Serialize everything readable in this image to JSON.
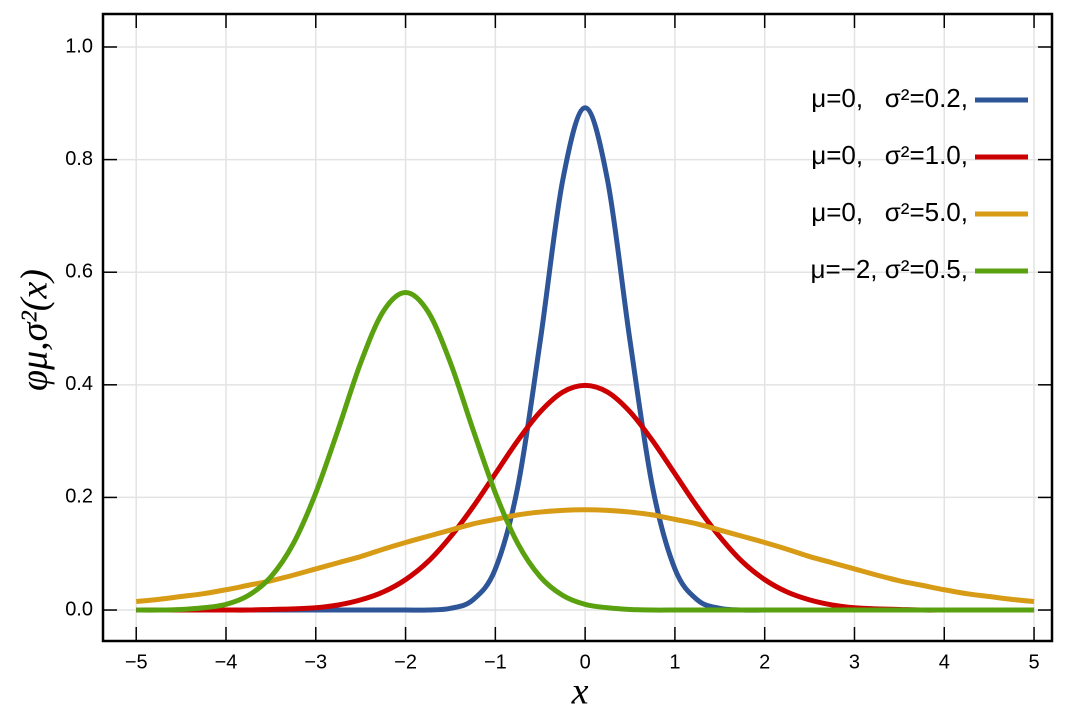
{
  "chart_data": {
    "type": "line",
    "xlabel": "x",
    "ylabel": "φμ,σ²(x)",
    "x": [
      -5,
      -4.75,
      -4.5,
      -4.25,
      -4,
      -3.75,
      -3.5,
      -3.25,
      -3,
      -2.75,
      -2.5,
      -2.25,
      -2,
      -1.75,
      -1.5,
      -1.25,
      -1,
      -0.75,
      -0.5,
      -0.25,
      0,
      0.25,
      0.5,
      0.75,
      1,
      1.25,
      1.5,
      1.75,
      2,
      2.25,
      2.5,
      2.75,
      3,
      3.25,
      3.5,
      3.75,
      4,
      4.25,
      4.5,
      4.75,
      5
    ],
    "series": [
      {
        "name": "μ=0,   σ²=0.2,",
        "color": "#2d5597",
        "values": [
          0,
          0,
          0,
          0,
          0,
          0,
          0,
          0,
          0,
          0,
          0,
          0,
          0,
          0,
          0.003,
          0.018,
          0.073,
          0.219,
          0.478,
          0.763,
          0.892,
          0.763,
          0.478,
          0.219,
          0.073,
          0.018,
          0.003,
          0,
          0,
          0,
          0,
          0,
          0,
          0,
          0,
          0,
          0,
          0,
          0,
          0,
          0
        ]
      },
      {
        "name": "μ=0,   σ²=1.0,",
        "color": "#cc0000",
        "values": [
          0,
          0,
          0,
          0,
          0,
          0,
          0.001,
          0.002,
          0.004,
          0.009,
          0.018,
          0.032,
          0.054,
          0.086,
          0.13,
          0.183,
          0.242,
          0.301,
          0.352,
          0.387,
          0.399,
          0.387,
          0.352,
          0.301,
          0.242,
          0.183,
          0.13,
          0.086,
          0.054,
          0.032,
          0.018,
          0.009,
          0.004,
          0.002,
          0.001,
          0,
          0,
          0,
          0,
          0,
          0
        ]
      },
      {
        "name": "μ=0,   σ²=5.0,",
        "color": "#d79b16",
        "values": [
          0.015,
          0.019,
          0.024,
          0.029,
          0.036,
          0.044,
          0.052,
          0.062,
          0.073,
          0.084,
          0.095,
          0.108,
          0.12,
          0.131,
          0.142,
          0.153,
          0.161,
          0.169,
          0.174,
          0.177,
          0.178,
          0.177,
          0.174,
          0.169,
          0.161,
          0.153,
          0.142,
          0.131,
          0.12,
          0.108,
          0.095,
          0.084,
          0.073,
          0.062,
          0.052,
          0.044,
          0.036,
          0.029,
          0.024,
          0.019,
          0.015
        ]
      },
      {
        "name": "μ=−2, σ²=0.5,",
        "color": "#5aa10f",
        "values": [
          0,
          0,
          0.001,
          0.004,
          0.01,
          0.026,
          0.059,
          0.118,
          0.208,
          0.321,
          0.439,
          0.53,
          0.564,
          0.53,
          0.439,
          0.321,
          0.208,
          0.118,
          0.059,
          0.026,
          0.01,
          0.004,
          0.001,
          0,
          0,
          0,
          0,
          0,
          0,
          0,
          0,
          0,
          0,
          0,
          0,
          0,
          0,
          0,
          0,
          0,
          0
        ]
      }
    ],
    "xlim": [
      -5.37,
      5.2
    ],
    "ylim": [
      -0.055,
      1.0586
    ],
    "xticks": [
      {
        "value": -5,
        "label": "−5"
      },
      {
        "value": -4,
        "label": "−4"
      },
      {
        "value": -3,
        "label": "−3"
      },
      {
        "value": -2,
        "label": "−2"
      },
      {
        "value": -1,
        "label": "−1"
      },
      0,
      1,
      2,
      3,
      4,
      5
    ],
    "yticks": [
      {
        "value": 0,
        "label": "0.0"
      },
      0.2,
      0.4,
      0.6,
      0.8,
      {
        "value": 1,
        "label": "1.0"
      }
    ],
    "grid": true,
    "legend": "upper right"
  }
}
